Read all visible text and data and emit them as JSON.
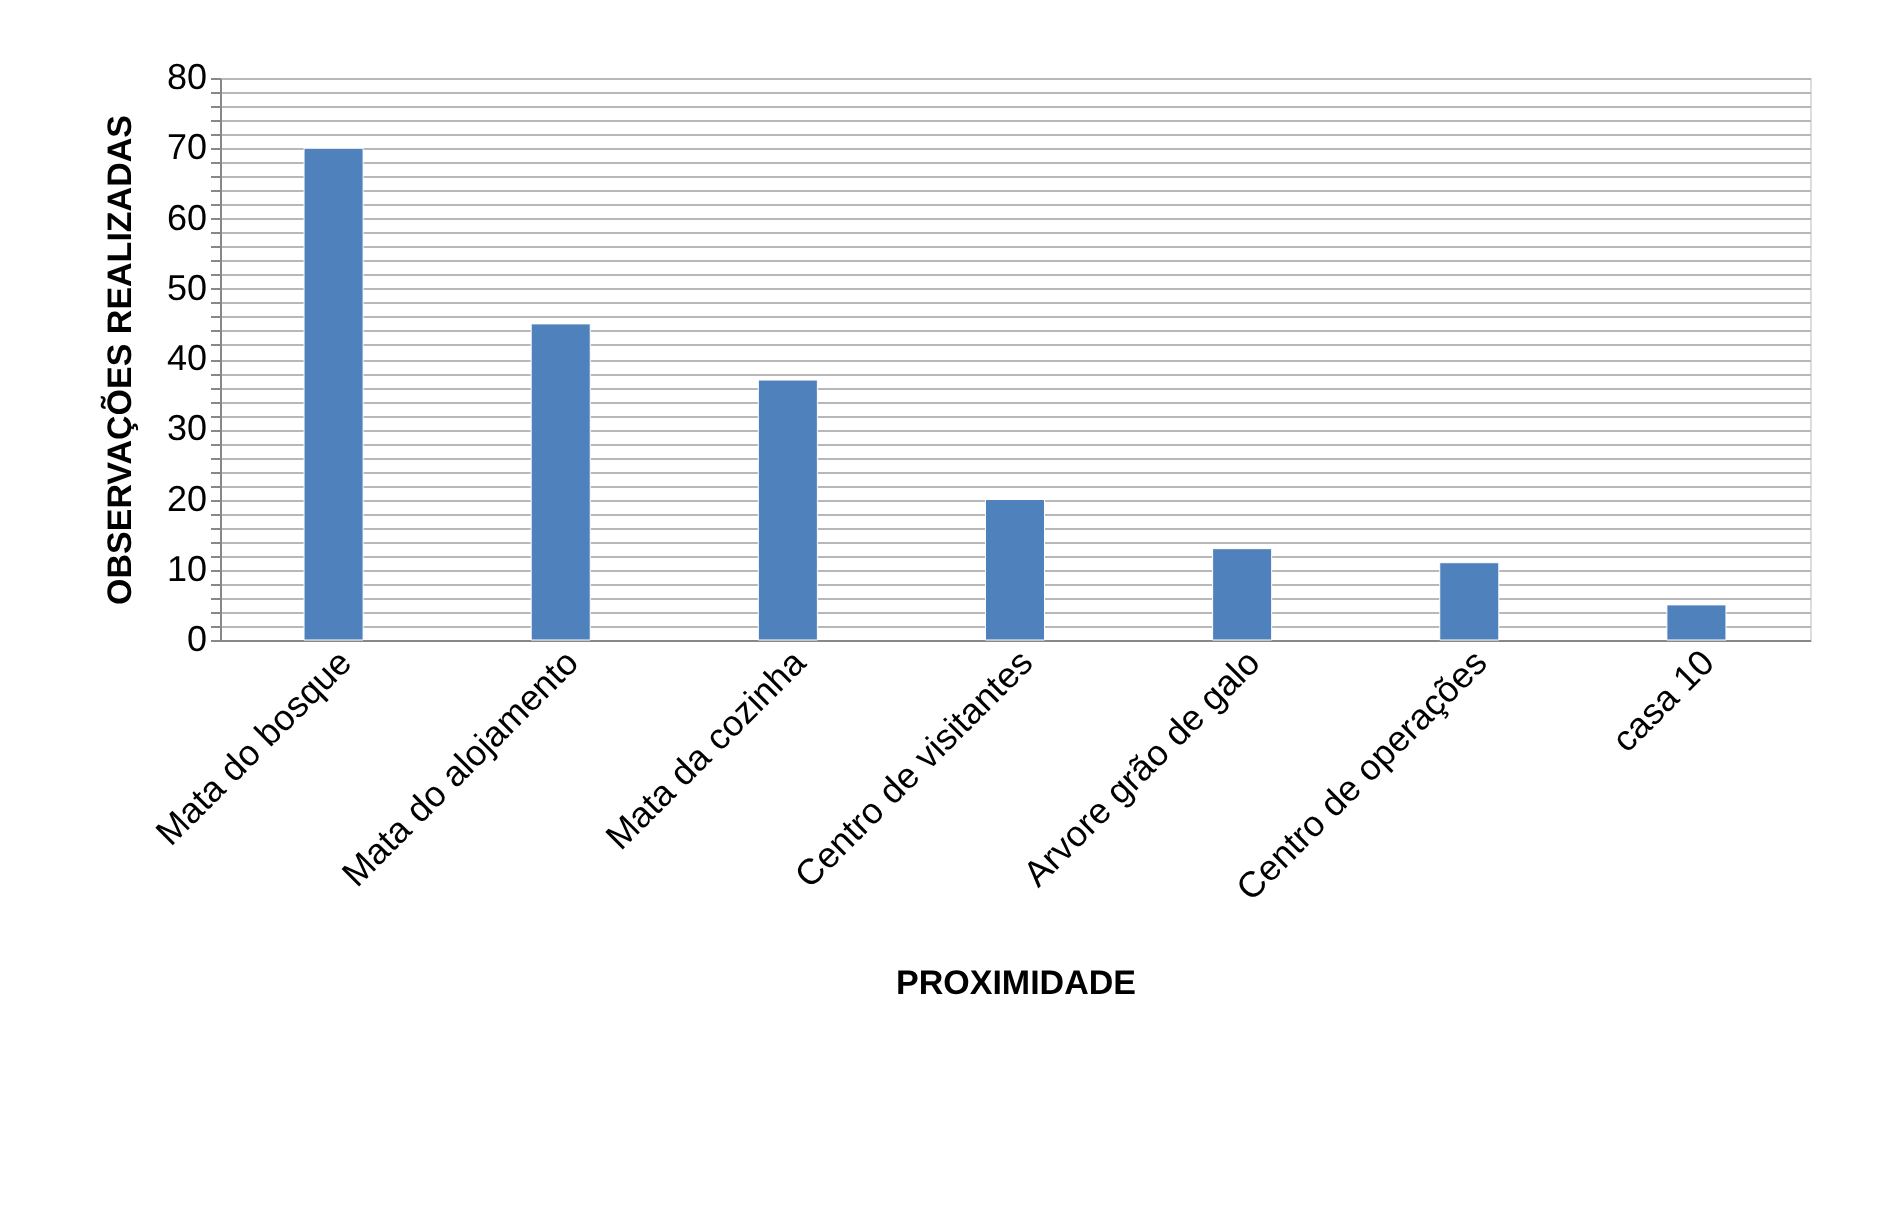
{
  "chart_data": {
    "type": "bar",
    "categories": [
      "Mata do bosque",
      "Mata do alojamento",
      "Mata da cozinha",
      "Centro de visitantes",
      "Arvore grão de galo",
      "Centro de operações",
      "casa 10"
    ],
    "values": [
      70,
      45,
      37,
      20,
      13,
      11,
      5
    ],
    "color": "#4f81bd",
    "xlabel": "PROXIMIDADE",
    "ylabel": "OBSERVAÇÕES REALIZADAS",
    "ylim": [
      0,
      80
    ],
    "yticks": [
      0,
      {
        "value": 2,
        "label": null
      },
      {
        "value": 4,
        "label": null
      },
      {
        "value": 6,
        "label": null
      },
      {
        "value": 8,
        "label": null
      },
      10,
      {
        "value": 12,
        "label": null
      },
      {
        "value": 14,
        "label": null
      },
      {
        "value": 16,
        "label": null
      },
      {
        "value": 18,
        "label": null
      },
      20,
      {
        "value": 22,
        "label": null
      },
      {
        "value": 24,
        "label": null
      },
      {
        "value": 26,
        "label": null
      },
      {
        "value": 28,
        "label": null
      },
      30,
      {
        "value": 32,
        "label": null
      },
      {
        "value": 34,
        "label": null
      },
      {
        "value": 36,
        "label": null
      },
      {
        "value": 38,
        "label": null
      },
      40,
      {
        "value": 42,
        "label": null
      },
      {
        "value": 44,
        "label": null
      },
      {
        "value": 46,
        "label": null
      },
      {
        "value": 48,
        "label": null
      },
      50,
      {
        "value": 52,
        "label": null
      },
      {
        "value": 54,
        "label": null
      },
      {
        "value": 56,
        "label": null
      },
      {
        "value": 58,
        "label": null
      },
      60,
      {
        "value": 62,
        "label": null
      },
      {
        "value": 64,
        "label": null
      },
      {
        "value": 66,
        "label": null
      },
      {
        "value": 68,
        "label": null
      },
      70,
      {
        "value": 72,
        "label": null
      },
      {
        "value": 74,
        "label": null
      },
      {
        "value": 76,
        "label": null
      },
      {
        "value": 78,
        "label": null
      },
      80
    ],
    "grid": "y"
  }
}
